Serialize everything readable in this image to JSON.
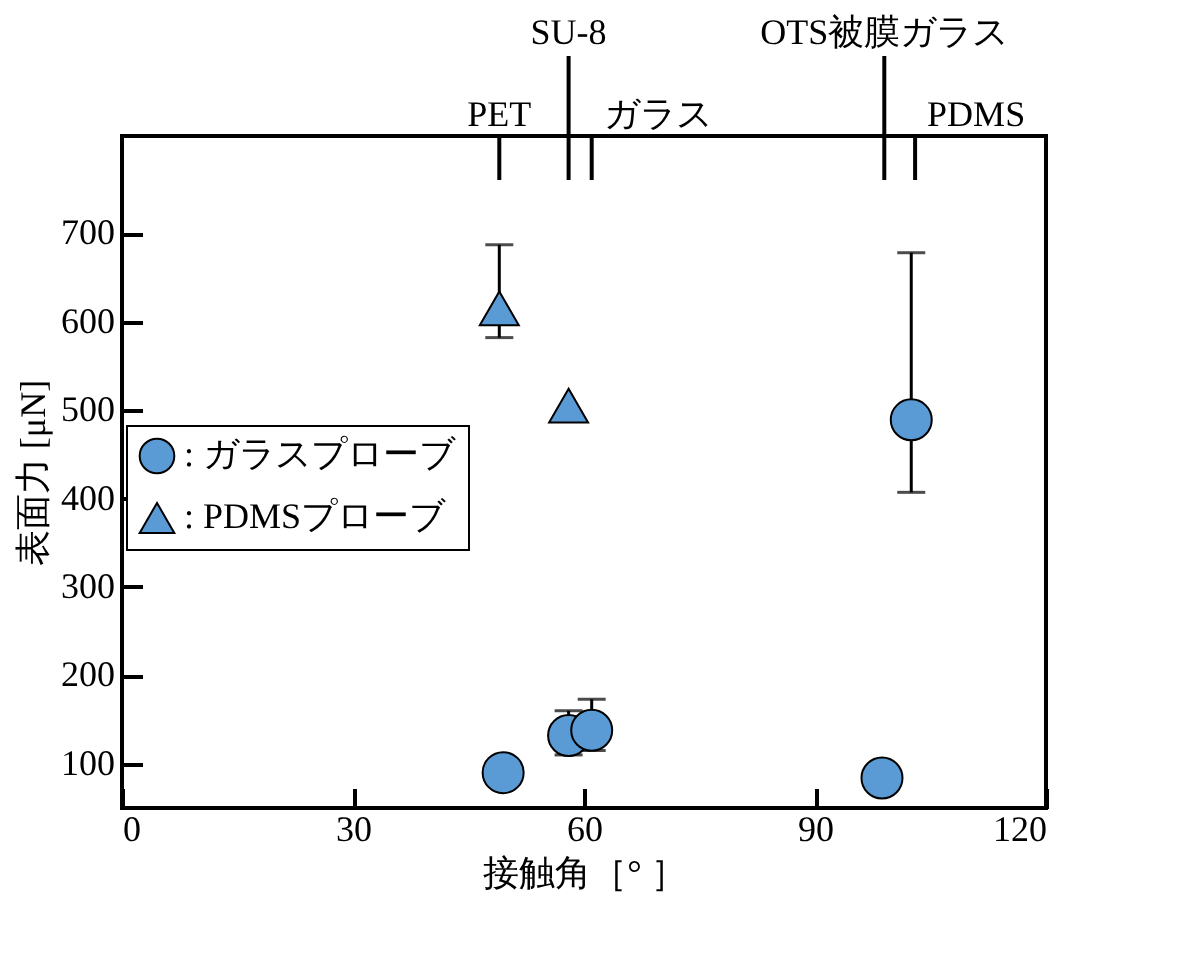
{
  "chart_data": {
    "type": "scatter",
    "xlabel": "接触角［°  ］",
    "ylabel": "表面力 [μN]",
    "xlim": [
      0,
      120
    ],
    "xticks": [
      0,
      30,
      60,
      90,
      120
    ],
    "ylim": [
      50,
      810
    ],
    "yticks": [
      100,
      200,
      300,
      400,
      500,
      600,
      700
    ],
    "grid": false,
    "legend": "left",
    "series": [
      {
        "name": ": ガラスプローブ",
        "color": "#5b9bd5",
        "marker": "circle",
        "x": [
          49.5,
          58,
          61,
          98.7,
          102.5
        ],
        "values": [
          90,
          132,
          138,
          84,
          489
        ],
        "errors": [
          null,
          [
            110,
            160
          ],
          [
            115,
            173
          ],
          null,
          [
            407,
            678
          ]
        ]
      },
      {
        "name": ": PDMSプローブ",
        "color": "#5b9bd5",
        "marker": "triangle",
        "x": [
          49,
          58
        ],
        "values": [
          615,
          505
        ],
        "errors": [
          [
            582,
            687
          ],
          null
        ]
      }
    ],
    "ref_lines": [
      {
        "axis": "x",
        "value": 49,
        "label": "PET"
      },
      {
        "axis": "x",
        "value": 58,
        "label": "SU-8"
      },
      {
        "axis": "x",
        "value": 61,
        "label": "ガラス"
      },
      {
        "axis": "x",
        "value": 99,
        "label": "OTS被膜ガラス"
      },
      {
        "axis": "x",
        "value": 103,
        "label": "PDMS"
      }
    ]
  }
}
